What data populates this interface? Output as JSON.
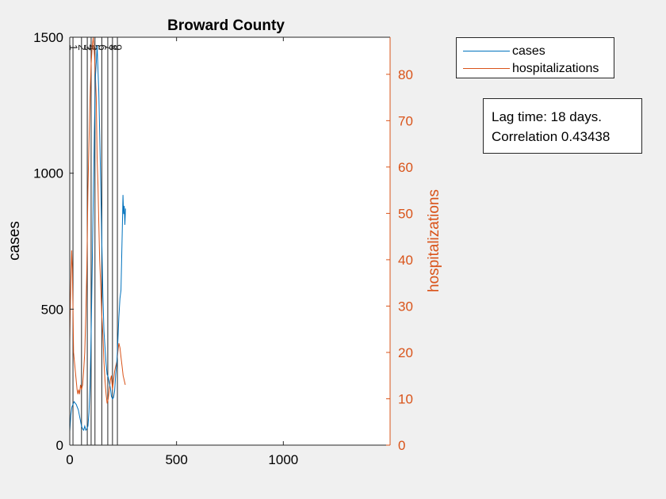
{
  "chart_data": {
    "type": "line",
    "title": "Broward County",
    "xlabel": "",
    "ylabel_left": "cases",
    "ylabel_right": "hospitalizations",
    "xlim": [
      0,
      1500
    ],
    "ylim_left": [
      0,
      1500
    ],
    "ylim_right": [
      0,
      88
    ],
    "x_ticks": [
      "0",
      "500",
      "1000"
    ],
    "y_ticks_left": [
      "0",
      "500",
      "1000",
      "1500"
    ],
    "y_ticks_right": [
      "0",
      "10",
      "20",
      "30",
      "40",
      "50",
      "60",
      "70",
      "80"
    ],
    "colors": {
      "cases": "#0072bd",
      "hospitalizations": "#d95319",
      "axis_right": "#d95319"
    },
    "legend_position": "outside-top-right",
    "vertical_lines": {
      "x": [
        15,
        55,
        82,
        100,
        118,
        150,
        178,
        200,
        223
      ],
      "labels": [
        "1",
        "2",
        "3",
        "4",
        "5",
        "6",
        "7",
        "8",
        "9"
      ]
    },
    "series": [
      {
        "name": "cases",
        "axis": "left",
        "points": [
          [
            0,
            50
          ],
          [
            5,
            110
          ],
          [
            10,
            140
          ],
          [
            15,
            150
          ],
          [
            20,
            160
          ],
          [
            25,
            155
          ],
          [
            30,
            150
          ],
          [
            35,
            140
          ],
          [
            40,
            130
          ],
          [
            45,
            110
          ],
          [
            50,
            90
          ],
          [
            55,
            70
          ],
          [
            60,
            60
          ],
          [
            65,
            55
          ],
          [
            70,
            70
          ],
          [
            75,
            55
          ],
          [
            80,
            60
          ],
          [
            85,
            70
          ],
          [
            90,
            120
          ],
          [
            95,
            220
          ],
          [
            100,
            400
          ],
          [
            105,
            650
          ],
          [
            110,
            900
          ],
          [
            115,
            1150
          ],
          [
            120,
            1350
          ],
          [
            125,
            1420
          ],
          [
            128,
            1470
          ],
          [
            132,
            1380
          ],
          [
            136,
            1300
          ],
          [
            140,
            1150
          ],
          [
            145,
            950
          ],
          [
            150,
            750
          ],
          [
            155,
            560
          ],
          [
            160,
            420
          ],
          [
            165,
            360
          ],
          [
            170,
            300
          ],
          [
            175,
            260
          ],
          [
            180,
            250
          ],
          [
            185,
            230
          ],
          [
            190,
            210
          ],
          [
            195,
            180
          ],
          [
            200,
            170
          ],
          [
            205,
            175
          ],
          [
            210,
            200
          ],
          [
            215,
            260
          ],
          [
            220,
            300
          ],
          [
            225,
            380
          ],
          [
            230,
            470
          ],
          [
            235,
            540
          ],
          [
            240,
            570
          ],
          [
            243,
            680
          ],
          [
            246,
            800
          ],
          [
            249,
            920
          ],
          [
            252,
            850
          ],
          [
            255,
            880
          ],
          [
            258,
            810
          ],
          [
            261,
            870
          ]
        ]
      },
      {
        "name": "hospitalizations",
        "axis": "right",
        "points": [
          [
            0,
            22
          ],
          [
            3,
            31
          ],
          [
            6,
            37
          ],
          [
            9,
            42
          ],
          [
            12,
            38
          ],
          [
            15,
            30
          ],
          [
            18,
            20
          ],
          [
            22,
            18
          ],
          [
            26,
            16
          ],
          [
            30,
            14
          ],
          [
            34,
            12
          ],
          [
            38,
            11
          ],
          [
            42,
            12
          ],
          [
            46,
            11
          ],
          [
            50,
            13
          ],
          [
            55,
            12
          ],
          [
            60,
            13
          ],
          [
            65,
            16
          ],
          [
            70,
            20
          ],
          [
            75,
            28
          ],
          [
            80,
            38
          ],
          [
            85,
            55
          ],
          [
            90,
            65
          ],
          [
            95,
            75
          ],
          [
            100,
            82
          ],
          [
            105,
            86
          ],
          [
            110,
            88
          ],
          [
            113,
            86
          ],
          [
            116,
            84
          ],
          [
            120,
            80
          ],
          [
            124,
            75
          ],
          [
            128,
            62
          ],
          [
            132,
            56
          ],
          [
            136,
            48
          ],
          [
            140,
            40
          ],
          [
            145,
            34
          ],
          [
            150,
            28
          ],
          [
            155,
            24
          ],
          [
            160,
            18
          ],
          [
            165,
            14
          ],
          [
            170,
            11
          ],
          [
            175,
            9
          ],
          [
            180,
            10
          ],
          [
            185,
            12
          ],
          [
            190,
            14
          ],
          [
            195,
            15
          ],
          [
            200,
            12
          ],
          [
            205,
            14
          ],
          [
            210,
            16
          ],
          [
            215,
            17
          ],
          [
            220,
            18
          ],
          [
            225,
            20
          ],
          [
            230,
            22
          ],
          [
            235,
            21
          ],
          [
            240,
            19
          ],
          [
            245,
            17
          ],
          [
            250,
            15
          ],
          [
            255,
            14
          ],
          [
            260,
            13
          ]
        ]
      }
    ]
  },
  "legend": {
    "items": [
      {
        "label": "cases"
      },
      {
        "label": "hospitalizations"
      }
    ]
  },
  "annotation": {
    "line1": "Lag time: 18 days.",
    "line2": "Correlation 0.43438"
  }
}
